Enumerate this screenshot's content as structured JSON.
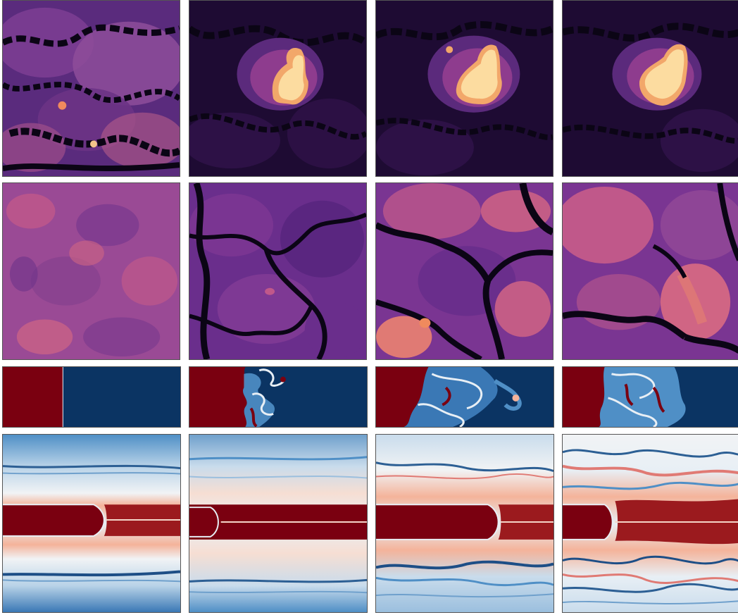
{
  "figure": {
    "rows": [
      {
        "name": "row-1-magma-field",
        "colormap": "magma",
        "panels": [
          {
            "name": "r1-c1",
            "pattern": "noisy-field"
          },
          {
            "name": "r1-c2",
            "pattern": "central-bright-blob"
          },
          {
            "name": "r1-c3",
            "pattern": "central-bright-blob"
          },
          {
            "name": "r1-c4",
            "pattern": "central-bright-blob"
          }
        ]
      },
      {
        "name": "row-2-magma-field",
        "colormap": "magma",
        "panels": [
          {
            "name": "r2-c1",
            "pattern": "smooth-noise"
          },
          {
            "name": "r2-c2",
            "pattern": "cellular-dark-cracks"
          },
          {
            "name": "r2-c3",
            "pattern": "cellular-dark-cracks"
          },
          {
            "name": "r2-c4",
            "pattern": "cellular-dark-cracks"
          }
        ]
      },
      {
        "name": "row-3-mixing-layer",
        "colormap": "RdBu",
        "panels": [
          {
            "name": "r3-c1",
            "pattern": "sharp-interface"
          },
          {
            "name": "r3-c2",
            "pattern": "mixing-front"
          },
          {
            "name": "r3-c3",
            "pattern": "mixing-front"
          },
          {
            "name": "r3-c4",
            "pattern": "mixing-front"
          }
        ]
      },
      {
        "name": "row-4-jet-flow",
        "colormap": "RdBu",
        "panels": [
          {
            "name": "r4-c1",
            "pattern": "jet-bands"
          },
          {
            "name": "r4-c2",
            "pattern": "jet-bands"
          },
          {
            "name": "r4-c3",
            "pattern": "jet-bands"
          },
          {
            "name": "r4-c4",
            "pattern": "jet-bands"
          }
        ]
      }
    ],
    "colors": {
      "magma_dark": "#0b0515",
      "magma_purple": "#4a1d6e",
      "magma_violet": "#7a2d8a",
      "magma_pink": "#c2457a",
      "magma_orange": "#f08a5d",
      "magma_light": "#fcebb0",
      "rdbu_red": "#7a0010",
      "rdbu_navy": "#0b3463",
      "rdbu_mid_blue": "#4f8fc6",
      "rdbu_light": "#e8eff5",
      "rdbu_pink": "#f4b39a"
    }
  }
}
